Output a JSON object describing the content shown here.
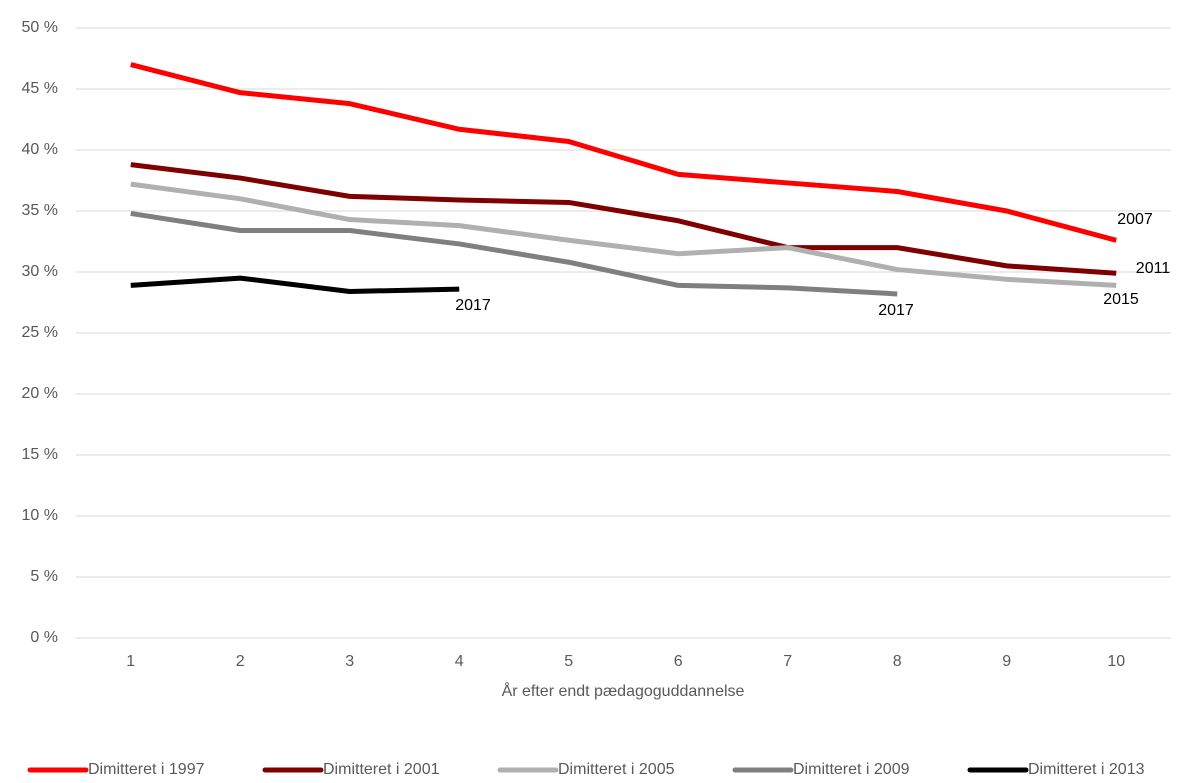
{
  "chart_data": {
    "type": "line",
    "xlabel": "År efter endt pædagoguddannelse",
    "categories": [
      "1",
      "2",
      "3",
      "4",
      "5",
      "6",
      "7",
      "8",
      "9",
      "10"
    ],
    "series": [
      {
        "name": "Dimitteret i 1997",
        "color": "#ff0000",
        "values": [
          47.0,
          44.7,
          43.8,
          41.7,
          40.7,
          38.0,
          37.3,
          36.6,
          35.0,
          32.6
        ]
      },
      {
        "name": "Dimitteret i 2001",
        "color": "#7f0000",
        "values": [
          38.8,
          37.7,
          36.2,
          35.9,
          35.7,
          34.2,
          32.0,
          32.0,
          30.5,
          29.9
        ]
      },
      {
        "name": "Dimitteret i 2005",
        "color": "#b0b0b0",
        "values": [
          37.2,
          36.0,
          34.3,
          33.8,
          32.6,
          31.5,
          32.0,
          30.2,
          29.4,
          28.9
        ]
      },
      {
        "name": "Dimitteret i 2009",
        "color": "#7f7f7f",
        "values": [
          34.8,
          33.4,
          33.4,
          32.3,
          30.8,
          28.9,
          28.7,
          28.2,
          null,
          null
        ]
      },
      {
        "name": "Dimitteret i 2013",
        "color": "#000000",
        "values": [
          28.9,
          29.5,
          28.4,
          28.6,
          null,
          null,
          null,
          null,
          null,
          null
        ]
      }
    ],
    "annotations": [
      "2007",
      "2011",
      "2015",
      "2017",
      "2017"
    ],
    "ylim": [
      0,
      50
    ],
    "yticks": [
      {
        "value": 0,
        "label": "0 %"
      },
      {
        "value": 5,
        "label": "5 %"
      },
      {
        "value": 10,
        "label": "10 %"
      },
      {
        "value": 15,
        "label": "15 %"
      },
      {
        "value": 20,
        "label": "20 %"
      },
      {
        "value": 25,
        "label": "25 %"
      },
      {
        "value": 30,
        "label": "30 %"
      },
      {
        "value": 35,
        "label": "35 %"
      },
      {
        "value": 40,
        "label": "40 %"
      },
      {
        "value": 45,
        "label": "45 %"
      },
      {
        "value": 50,
        "label": "50 %"
      }
    ],
    "grid": true,
    "legend": "bottom"
  }
}
